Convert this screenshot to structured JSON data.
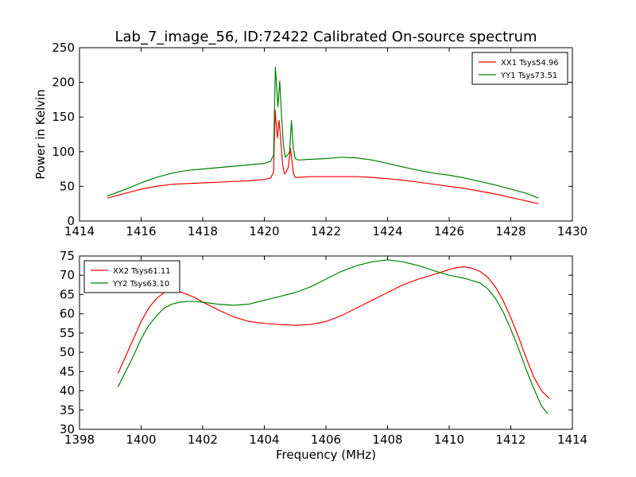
{
  "chart_data": [
    {
      "type": "line",
      "title": "Lab_7_image_56, ID:72422 Calibrated On-source spectrum",
      "xlabel": "",
      "ylabel": "Power in Kelvin",
      "xlim": [
        1414,
        1430
      ],
      "ylim": [
        0,
        250
      ],
      "xticks": [
        "1414",
        "1416",
        "1418",
        "1420",
        "1422",
        "1424",
        "1426",
        "1428",
        "1430"
      ],
      "yticks": [
        "0",
        "50",
        "100",
        "150",
        "200",
        "250"
      ],
      "grid": false,
      "legend_position": "top-right",
      "series": [
        {
          "name": "XX1 Tsys54.96",
          "color": "#ff0000",
          "x": [
            1414.9,
            1415.5,
            1416.0,
            1416.5,
            1417.0,
            1417.5,
            1418.0,
            1418.5,
            1419.0,
            1419.5,
            1420.0,
            1420.2,
            1420.3,
            1420.35,
            1420.42,
            1420.48,
            1420.53,
            1420.6,
            1420.65,
            1420.7,
            1420.78,
            1420.85,
            1420.9,
            1420.95,
            1421.0,
            1421.1,
            1421.5,
            1422.0,
            1422.5,
            1423.0,
            1423.5,
            1424.0,
            1424.5,
            1425.0,
            1425.5,
            1426.0,
            1426.5,
            1427.0,
            1427.5,
            1428.0,
            1428.5,
            1428.9
          ],
          "y": [
            33,
            40,
            46,
            50,
            53,
            54,
            55,
            56,
            57,
            58,
            60,
            62,
            70,
            160,
            120,
            145,
            118,
            80,
            68,
            70,
            78,
            105,
            85,
            68,
            63,
            63,
            64,
            64,
            64,
            64,
            63,
            61,
            59,
            56,
            53,
            50,
            47,
            43,
            39,
            34,
            29,
            25
          ]
        },
        {
          "name": "YY1 Tsys73.51",
          "color": "#008000",
          "x": [
            1414.9,
            1415.5,
            1416.0,
            1416.5,
            1417.0,
            1417.5,
            1418.0,
            1418.5,
            1419.0,
            1419.5,
            1420.0,
            1420.2,
            1420.3,
            1420.36,
            1420.44,
            1420.5,
            1420.56,
            1420.62,
            1420.68,
            1420.75,
            1420.82,
            1420.88,
            1420.94,
            1421.0,
            1421.1,
            1421.5,
            1422.0,
            1422.5,
            1423.0,
            1423.5,
            1424.0,
            1424.5,
            1425.0,
            1425.5,
            1426.0,
            1426.5,
            1427.0,
            1427.5,
            1428.0,
            1428.5,
            1428.9
          ],
          "y": [
            36,
            46,
            55,
            63,
            69,
            73,
            75,
            77,
            79,
            81,
            83,
            86,
            95,
            222,
            165,
            202,
            150,
            110,
            92,
            95,
            100,
            145,
            105,
            90,
            88,
            89,
            90,
            92,
            91,
            88,
            83,
            78,
            73,
            69,
            66,
            62,
            57,
            52,
            46,
            40,
            33
          ]
        }
      ]
    },
    {
      "type": "line",
      "title": "",
      "xlabel": "Frequency (MHz)",
      "ylabel": "",
      "xlim": [
        1398,
        1414
      ],
      "ylim": [
        30,
        75
      ],
      "xticks": [
        "1398",
        "1400",
        "1402",
        "1404",
        "1406",
        "1408",
        "1410",
        "1412",
        "1414"
      ],
      "yticks": [
        "30",
        "35",
        "40",
        "45",
        "50",
        "55",
        "60",
        "65",
        "70",
        "75"
      ],
      "grid": false,
      "legend_position": "top-left",
      "series": [
        {
          "name": "XX2 Tsys61.11",
          "color": "#ff0000",
          "x": [
            1399.25,
            1399.5,
            1399.75,
            1400.0,
            1400.25,
            1400.5,
            1400.75,
            1401.0,
            1401.25,
            1401.5,
            1401.75,
            1402.0,
            1402.5,
            1403.0,
            1403.5,
            1404.0,
            1404.5,
            1405.0,
            1405.5,
            1406.0,
            1406.5,
            1407.0,
            1407.5,
            1408.0,
            1408.5,
            1409.0,
            1409.5,
            1410.0,
            1410.25,
            1410.5,
            1410.75,
            1411.0,
            1411.25,
            1411.5,
            1411.75,
            1412.0,
            1412.25,
            1412.5,
            1412.75,
            1413.0,
            1413.25
          ],
          "y": [
            44.5,
            49,
            53.5,
            58,
            61.5,
            64,
            65.5,
            66,
            65.8,
            65,
            64.2,
            63,
            61,
            59.2,
            58,
            57.5,
            57.2,
            57,
            57.2,
            58,
            59.5,
            61.5,
            63.5,
            65.5,
            67.5,
            69,
            70.2,
            71.5,
            72,
            72.2,
            71.8,
            71,
            69.5,
            67,
            63.5,
            59,
            54,
            48.5,
            43.5,
            40,
            38
          ]
        },
        {
          "name": "YY2 Tsys63.10",
          "color": "#008000",
          "x": [
            1399.25,
            1399.5,
            1399.75,
            1400.0,
            1400.25,
            1400.5,
            1400.75,
            1401.0,
            1401.25,
            1401.5,
            1401.75,
            1402.0,
            1402.5,
            1403.0,
            1403.5,
            1404.0,
            1404.5,
            1405.0,
            1405.5,
            1406.0,
            1406.5,
            1407.0,
            1407.5,
            1408.0,
            1408.5,
            1409.0,
            1409.5,
            1410.0,
            1410.5,
            1411.0,
            1411.25,
            1411.5,
            1411.75,
            1412.0,
            1412.25,
            1412.5,
            1412.75,
            1413.0,
            1413.2
          ],
          "y": [
            41,
            45,
            49,
            53.5,
            57,
            59.5,
            61.5,
            62.5,
            63,
            63.2,
            63.2,
            63,
            62.5,
            62.2,
            62.5,
            63.5,
            64.5,
            65.5,
            67,
            69,
            71,
            72.5,
            73.5,
            74,
            73.5,
            72.5,
            71.2,
            70,
            69.2,
            68,
            66.5,
            64,
            60.5,
            56,
            51,
            45.5,
            40.5,
            36,
            34
          ]
        }
      ]
    }
  ]
}
